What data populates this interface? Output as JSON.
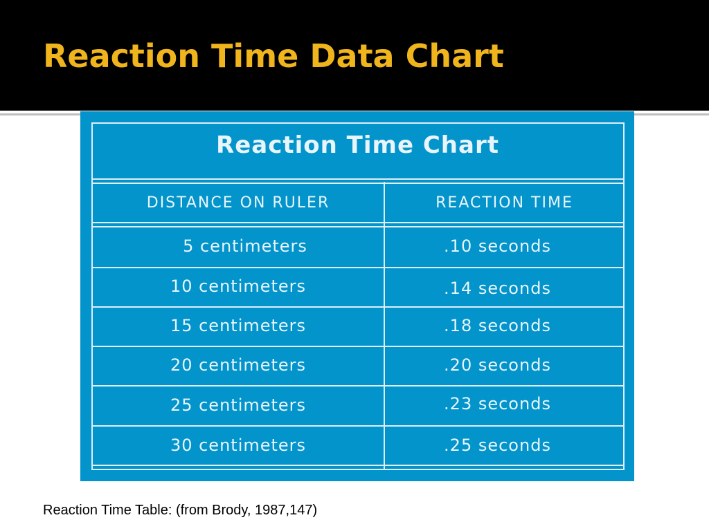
{
  "slide": {
    "title": "Reaction Time Data Chart",
    "caption": "Reaction Time Table: (from Brody, 1987,147)"
  },
  "table": {
    "heading": "Reaction Time Chart",
    "columns": [
      "DISTANCE ON RULER",
      "REACTION TIME"
    ],
    "rows": [
      [
        "5 centimeters",
        ".10 seconds"
      ],
      [
        "10 centimeters",
        ".14 seconds"
      ],
      [
        "15 centimeters",
        ".18 seconds"
      ],
      [
        "20 centimeters",
        ".20 seconds"
      ],
      [
        "25 centimeters",
        ".23 seconds"
      ],
      [
        "30 centimeters",
        ".25 seconds"
      ]
    ]
  },
  "colors": {
    "title_bar": "#000000",
    "title_text": "#f0b41c",
    "table_background": "#0394cc",
    "table_text": "#e9f5fb"
  }
}
